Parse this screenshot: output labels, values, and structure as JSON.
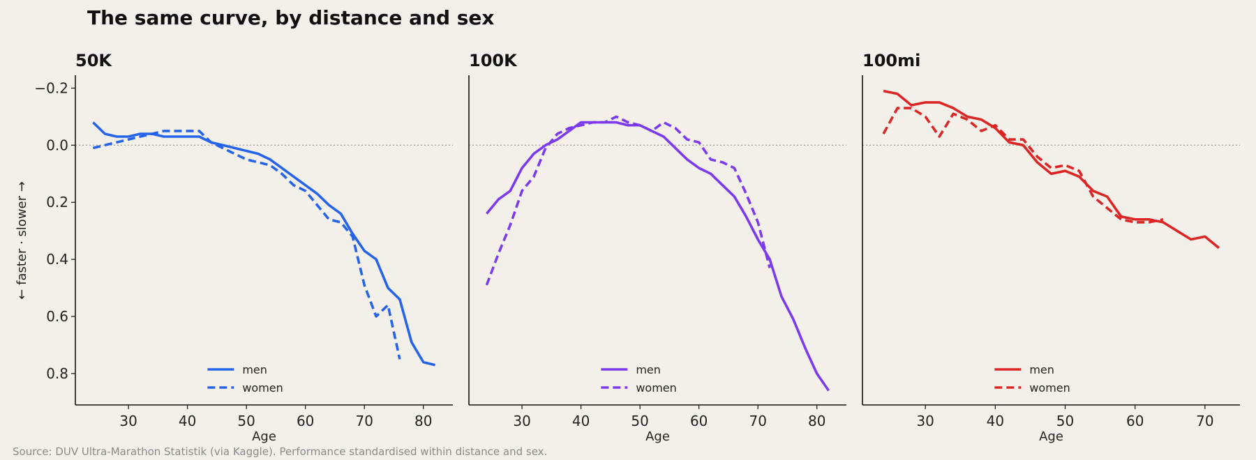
{
  "title": "The same curve, by distance and sex",
  "source": "Source: DUV Ultra-Marathon Statistik (via Kaggle). Performance standardised within distance and sex.",
  "ylabel": "← faster   ·   slower →",
  "chart_data": [
    {
      "type": "line",
      "title": "50K",
      "xlabel": "Age",
      "xlim": [
        21,
        85
      ],
      "ylim": [
        0.91,
        -0.245
      ],
      "y_inverted": true,
      "xticks": [
        30,
        40,
        50,
        60,
        70,
        80
      ],
      "yticks": [
        -0.2,
        0.0,
        0.2,
        0.4,
        0.6,
        0.8
      ],
      "ytick_labels": [
        "−0.2",
        "0.0",
        "0.2",
        "0.4",
        "0.6",
        "0.8"
      ],
      "reference_line": 0,
      "color": "#2563eb",
      "legend_position": "lower center",
      "series": [
        {
          "name": "men",
          "style": "solid",
          "x": [
            24,
            26,
            28,
            30,
            32,
            34,
            36,
            38,
            40,
            42,
            44,
            46,
            48,
            50,
            52,
            54,
            56,
            58,
            60,
            62,
            64,
            66,
            68,
            70,
            72,
            74,
            76,
            78,
            80,
            82
          ],
          "y": [
            -0.08,
            -0.04,
            -0.03,
            -0.03,
            -0.04,
            -0.04,
            -0.03,
            -0.03,
            -0.03,
            -0.03,
            -0.01,
            0.0,
            0.01,
            0.02,
            0.03,
            0.05,
            0.08,
            0.11,
            0.14,
            0.17,
            0.21,
            0.24,
            0.31,
            0.37,
            0.4,
            0.5,
            0.54,
            0.69,
            0.76,
            0.77
          ]
        },
        {
          "name": "women",
          "style": "dashed",
          "x": [
            24,
            26,
            28,
            30,
            32,
            34,
            36,
            38,
            40,
            42,
            44,
            46,
            48,
            50,
            52,
            54,
            56,
            58,
            60,
            62,
            64,
            66,
            68,
            70,
            72,
            74,
            76
          ],
          "y": [
            0.01,
            0.0,
            -0.01,
            -0.02,
            -0.03,
            -0.04,
            -0.05,
            -0.05,
            -0.05,
            -0.05,
            -0.01,
            0.01,
            0.03,
            0.05,
            0.06,
            0.07,
            0.1,
            0.14,
            0.16,
            0.21,
            0.26,
            0.27,
            0.32,
            0.49,
            0.6,
            0.56,
            0.75
          ]
        }
      ]
    },
    {
      "type": "line",
      "title": "100K",
      "xlabel": "Age",
      "xlim": [
        21,
        85
      ],
      "ylim": [
        0.91,
        -0.245
      ],
      "y_inverted": true,
      "xticks": [
        30,
        40,
        50,
        60,
        70,
        80
      ],
      "reference_line": 0,
      "color": "#7c3aed",
      "legend_position": "lower center",
      "series": [
        {
          "name": "men",
          "style": "solid",
          "x": [
            24,
            26,
            28,
            30,
            32,
            34,
            36,
            38,
            40,
            42,
            44,
            46,
            48,
            50,
            52,
            54,
            56,
            58,
            60,
            62,
            64,
            66,
            68,
            70,
            72,
            74,
            76,
            78,
            80,
            82
          ],
          "y": [
            0.24,
            0.19,
            0.16,
            0.08,
            0.03,
            0.0,
            -0.02,
            -0.05,
            -0.08,
            -0.08,
            -0.08,
            -0.08,
            -0.07,
            -0.07,
            -0.05,
            -0.03,
            0.01,
            0.05,
            0.08,
            0.1,
            0.14,
            0.18,
            0.25,
            0.33,
            0.4,
            0.53,
            0.61,
            0.71,
            0.8,
            0.86
          ]
        },
        {
          "name": "women",
          "style": "dashed",
          "x": [
            24,
            26,
            28,
            30,
            32,
            34,
            36,
            38,
            40,
            42,
            44,
            46,
            48,
            50,
            52,
            54,
            56,
            58,
            60,
            62,
            64,
            66,
            68,
            70,
            72
          ],
          "y": [
            0.49,
            0.38,
            0.28,
            0.16,
            0.11,
            0.01,
            -0.04,
            -0.06,
            -0.07,
            -0.08,
            -0.08,
            -0.1,
            -0.08,
            -0.07,
            -0.05,
            -0.08,
            -0.06,
            -0.02,
            -0.01,
            0.05,
            0.06,
            0.08,
            0.17,
            0.27,
            0.43
          ]
        }
      ]
    },
    {
      "type": "line",
      "title": "100mi",
      "xlabel": "Age",
      "xlim": [
        21,
        75
      ],
      "ylim": [
        0.91,
        -0.245
      ],
      "y_inverted": true,
      "xticks": [
        30,
        40,
        50,
        60,
        70
      ],
      "reference_line": 0,
      "color": "#dc2626",
      "legend_position": "lower center",
      "series": [
        {
          "name": "men",
          "style": "solid",
          "x": [
            24,
            26,
            28,
            30,
            32,
            34,
            36,
            38,
            40,
            42,
            44,
            46,
            48,
            50,
            52,
            54,
            56,
            58,
            60,
            62,
            64,
            66,
            68,
            70,
            72
          ],
          "y": [
            -0.19,
            -0.18,
            -0.14,
            -0.15,
            -0.15,
            -0.13,
            -0.1,
            -0.09,
            -0.06,
            -0.01,
            0.0,
            0.06,
            0.1,
            0.09,
            0.11,
            0.16,
            0.18,
            0.25,
            0.26,
            0.26,
            0.27,
            0.3,
            0.33,
            0.32,
            0.36
          ]
        },
        {
          "name": "women",
          "style": "dashed",
          "x": [
            24,
            26,
            28,
            30,
            32,
            34,
            36,
            38,
            40,
            42,
            44,
            46,
            48,
            50,
            52,
            54,
            56,
            58,
            60,
            62,
            64
          ],
          "y": [
            -0.04,
            -0.13,
            -0.13,
            -0.1,
            -0.03,
            -0.11,
            -0.09,
            -0.05,
            -0.07,
            -0.02,
            -0.02,
            0.04,
            0.08,
            0.07,
            0.09,
            0.18,
            0.22,
            0.26,
            0.27,
            0.27,
            0.26
          ]
        }
      ]
    }
  ]
}
